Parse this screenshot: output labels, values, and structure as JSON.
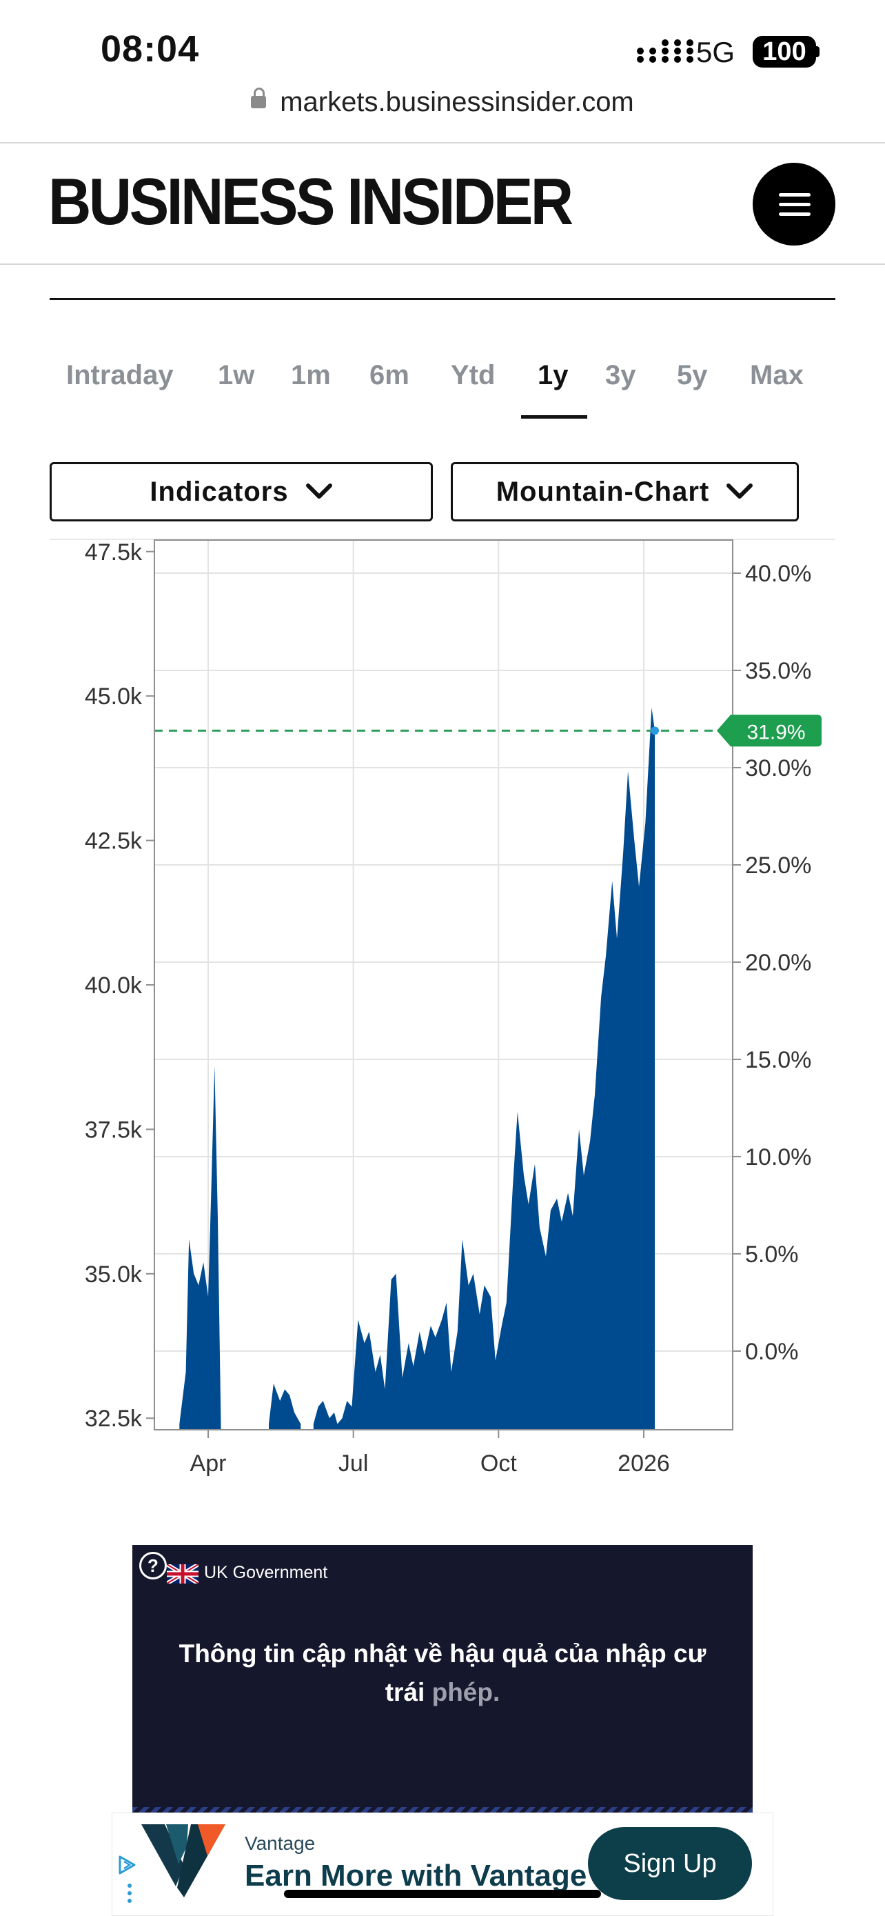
{
  "status_bar": {
    "time": "08:04",
    "network": "5G",
    "battery": "100",
    "signal_icon": "signal-bars-icon"
  },
  "browser": {
    "url": "markets.businessinsider.com",
    "lock_icon": "lock-icon"
  },
  "header": {
    "logo": "BUSINESS INSIDER",
    "menu_icon": "hamburger-menu-icon"
  },
  "range_tabs": {
    "items": [
      "Intraday",
      "1w",
      "1m",
      "6m",
      "Ytd",
      "1y",
      "3y",
      "5y",
      "Max"
    ],
    "active": "1y"
  },
  "controls": {
    "indicators_label": "Indicators",
    "chart_type_label": "Mountain-Chart"
  },
  "colors": {
    "area_fill": "#004b8f",
    "last_value_badge": "#1e9e4f",
    "reference_line": "#2e9e5b",
    "ad_background": "#15172c",
    "signup_button": "#0d3f4a"
  },
  "chart_data": {
    "type": "area",
    "x_ticks": [
      "Apr",
      "Jul",
      "Oct",
      "2026"
    ],
    "y_left_ticks": [
      "47.5k",
      "45.0k",
      "42.5k",
      "40.0k",
      "37.5k",
      "35.0k",
      "32.5k"
    ],
    "y_right_ticks": [
      "40.0%",
      "35.0%",
      "30.0%",
      "25.0%",
      "20.0%",
      "15.0%",
      "10.0%",
      "5.0%",
      "0.0%"
    ],
    "ylim": [
      32300,
      47700
    ],
    "last_value_label": "31.9%",
    "last_value": 44400,
    "grid": true,
    "series": [
      {
        "x": [
          "2025-03-14",
          "2025-03-18",
          "2025-03-20",
          "2025-03-23",
          "2025-03-26",
          "2025-03-29",
          "2025-04-01",
          "2025-04-03",
          "2025-04-05",
          "2025-04-07",
          "2025-04-09",
          "2025-05-09",
          "2025-05-12",
          "2025-05-16",
          "2025-05-19",
          "2025-05-22",
          "2025-05-25",
          "2025-05-29",
          "2025-06-06",
          "2025-06-09",
          "2025-06-12",
          "2025-06-16",
          "2025-06-19",
          "2025-06-21",
          "2025-06-24",
          "2025-06-27",
          "2025-06-30",
          "2025-07-04",
          "2025-07-08",
          "2025-07-11",
          "2025-07-15",
          "2025-07-18",
          "2025-07-21",
          "2025-07-25",
          "2025-07-28",
          "2025-08-01",
          "2025-08-05",
          "2025-08-08",
          "2025-08-12",
          "2025-08-15",
          "2025-08-19",
          "2025-08-22",
          "2025-08-26",
          "2025-08-29",
          "2025-09-01",
          "2025-09-05",
          "2025-09-08",
          "2025-09-12",
          "2025-09-15",
          "2025-09-19",
          "2025-09-22",
          "2025-09-26",
          "2025-09-29",
          "2025-10-03",
          "2025-10-06",
          "2025-10-10",
          "2025-10-13",
          "2025-10-17",
          "2025-10-20",
          "2025-10-24",
          "2025-10-27",
          "2025-10-31",
          "2025-11-03",
          "2025-11-07",
          "2025-11-10",
          "2025-11-14",
          "2025-11-17",
          "2025-11-21",
          "2025-11-24",
          "2025-11-28",
          "2025-12-01",
          "2025-12-05",
          "2025-12-08",
          "2025-12-12",
          "2025-12-15",
          "2025-12-19",
          "2025-12-22",
          "2025-12-26",
          "2025-12-29",
          "2026-01-02",
          "2026-01-06",
          "2026-01-08"
        ],
        "values": [
          32400,
          33300,
          35600,
          35000,
          34800,
          35200,
          34600,
          36500,
          38600,
          36000,
          32400,
          32400,
          33100,
          32800,
          33000,
          32900,
          32600,
          32400,
          32400,
          32700,
          32800,
          32500,
          32600,
          32400,
          32500,
          32800,
          32700,
          34200,
          33800,
          34000,
          33300,
          33600,
          33000,
          34900,
          35000,
          33200,
          33800,
          33400,
          34000,
          33600,
          34100,
          33900,
          34200,
          34500,
          33300,
          34000,
          35600,
          34800,
          35000,
          34300,
          34800,
          34600,
          33500,
          34100,
          34500,
          36500,
          37800,
          36700,
          36200,
          36900,
          35800,
          35300,
          36100,
          36300,
          35900,
          36400,
          36000,
          37500,
          36700,
          37300,
          38100,
          39800,
          40500,
          41800,
          40800,
          42300,
          43700,
          42500,
          41700,
          42800,
          44800,
          44400
        ]
      }
    ]
  },
  "ads": {
    "ad1": {
      "help": "?",
      "sponsor": "UK Government",
      "text_main": "Thông tin cập nhật về hậu quả của nhập cư trái",
      "text_dim": "phép."
    },
    "ad2": {
      "brand": "Vantage",
      "headline": "Earn More with Vantage",
      "cta": "Sign Up",
      "adchoices_icon": "adchoices-icon"
    }
  }
}
